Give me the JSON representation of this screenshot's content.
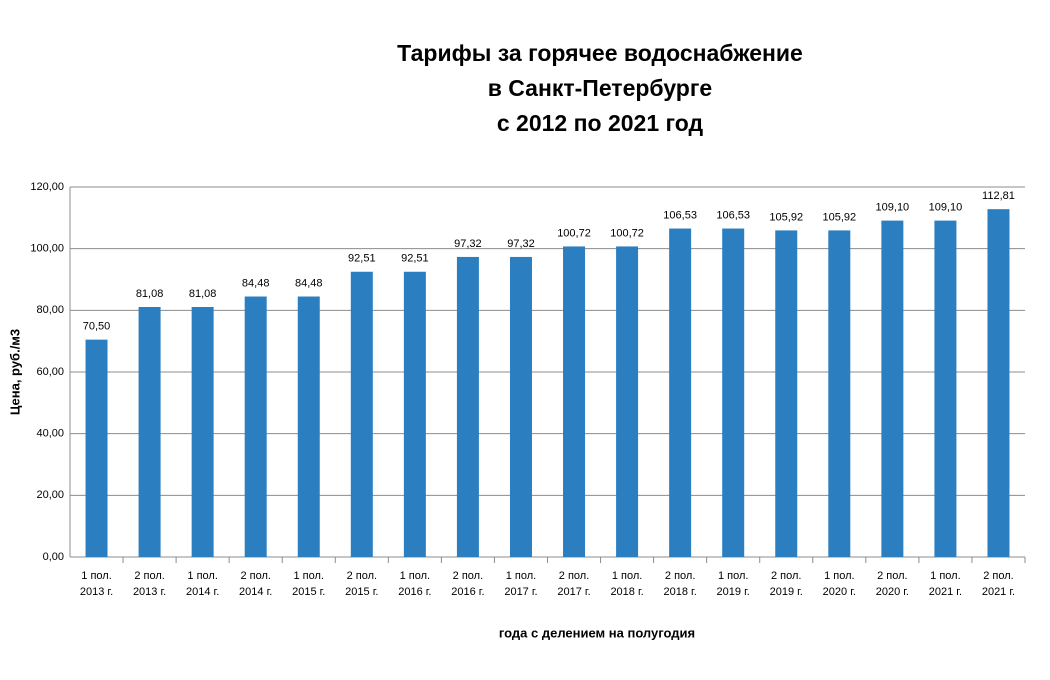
{
  "chart_data": {
    "type": "bar",
    "title": [
      "Тарифы за горячее водоснабжение",
      "в Санкт-Петербурге",
      "с 2012 по 2021 год"
    ],
    "x_label": "года с делением на полугодия",
    "y_label": "Цена, руб./м3",
    "categories": [
      [
        "1 пол.",
        "2013 г."
      ],
      [
        "2 пол.",
        "2013 г."
      ],
      [
        "1 пол.",
        "2014 г."
      ],
      [
        "2 пол.",
        "2014 г."
      ],
      [
        "1 пол.",
        "2015 г."
      ],
      [
        "2 пол.",
        "2015 г."
      ],
      [
        "1 пол.",
        "2016 г."
      ],
      [
        "2 пол.",
        "2016 г."
      ],
      [
        "1 пол.",
        "2017 г."
      ],
      [
        "2 пол.",
        "2017 г."
      ],
      [
        "1 пол.",
        "2018 г."
      ],
      [
        "2 пол.",
        "2018 г."
      ],
      [
        "1 пол.",
        "2019 г."
      ],
      [
        "2 пол.",
        "2019 г."
      ],
      [
        "1 пол.",
        "2020 г."
      ],
      [
        "2 пол.",
        "2020 г."
      ],
      [
        "1 пол.",
        "2021 г."
      ],
      [
        "2 пол.",
        "2021 г."
      ]
    ],
    "values": [
      70.5,
      81.08,
      81.08,
      84.48,
      84.48,
      92.51,
      92.51,
      97.32,
      97.32,
      100.72,
      100.72,
      106.53,
      106.53,
      105.92,
      105.92,
      109.1,
      109.1,
      112.81
    ],
    "value_labels": [
      "70,50",
      "81,08",
      "81,08",
      "84,48",
      "84,48",
      "92,51",
      "92,51",
      "97,32",
      "97,32",
      "100,72",
      "100,72",
      "106,53",
      "106,53",
      "105,92",
      "105,92",
      "109,10",
      "109,10",
      "112,81"
    ],
    "color": "#2b7fc1",
    "ylim": [
      0,
      120
    ],
    "yticks": [
      {
        "value": 0,
        "label": "0,00"
      },
      {
        "value": 20,
        "label": "20,00"
      },
      {
        "value": 40,
        "label": "40,00"
      },
      {
        "value": 60,
        "label": "60,00"
      },
      {
        "value": 80,
        "label": "80,00"
      },
      {
        "value": 100,
        "label": "100,00"
      },
      {
        "value": 120,
        "label": "120,00"
      }
    ],
    "grid": true
  }
}
